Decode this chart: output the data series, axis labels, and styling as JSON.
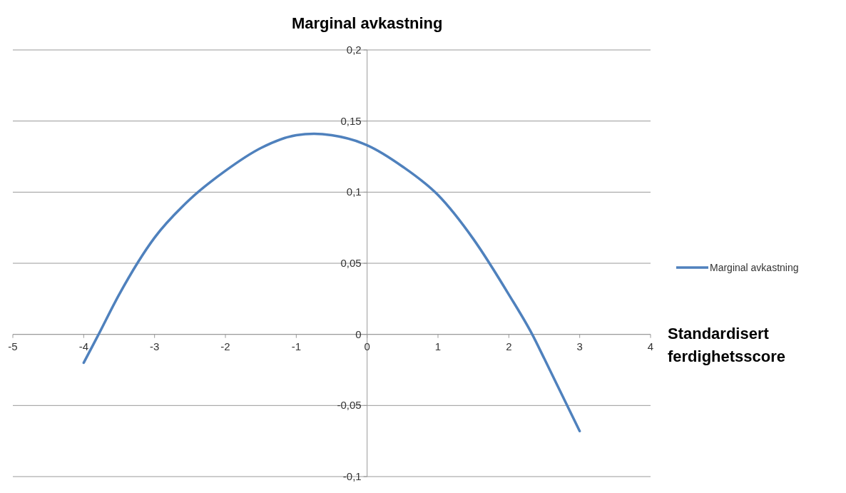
{
  "chart_data": {
    "type": "line",
    "title": "Marginal avkastning",
    "xlabel": "Standardisert ferdighetsscore",
    "x": [
      -4,
      -3.8,
      -3.5,
      -3,
      -2.5,
      -2,
      -1.5,
      -1,
      -0.75,
      -0.5,
      0,
      0.5,
      1,
      1.5,
      2,
      2.33,
      2.5,
      3
    ],
    "series": [
      {
        "name": "Marginal avkastning",
        "color": "#4f81bd",
        "values": [
          -0.02,
          -0.001,
          0.028,
          0.068,
          0.095,
          0.115,
          0.131,
          0.14,
          0.141,
          0.14,
          0.133,
          0.118,
          0.098,
          0.067,
          0.028,
          0,
          -0.017,
          -0.068
        ]
      }
    ],
    "xlim": [
      -5,
      4
    ],
    "xticks": [
      -5,
      -4,
      -3,
      -2,
      -1,
      0,
      1,
      2,
      3,
      4
    ],
    "ylim": [
      -0.1,
      0.2
    ],
    "yticks": [
      {
        "value": -0.1,
        "label": "-0,1"
      },
      {
        "value": -0.05,
        "label": "-0,05"
      },
      {
        "value": 0,
        "label": "0"
      },
      {
        "value": 0.05,
        "label": "0,05"
      },
      {
        "value": 0.1,
        "label": "0,1"
      },
      {
        "value": 0.15,
        "label": "0,15"
      },
      {
        "value": 0.2,
        "label": "0,2"
      }
    ],
    "grid": "y",
    "legend": "right",
    "marker": "none",
    "line_style": "solid"
  }
}
